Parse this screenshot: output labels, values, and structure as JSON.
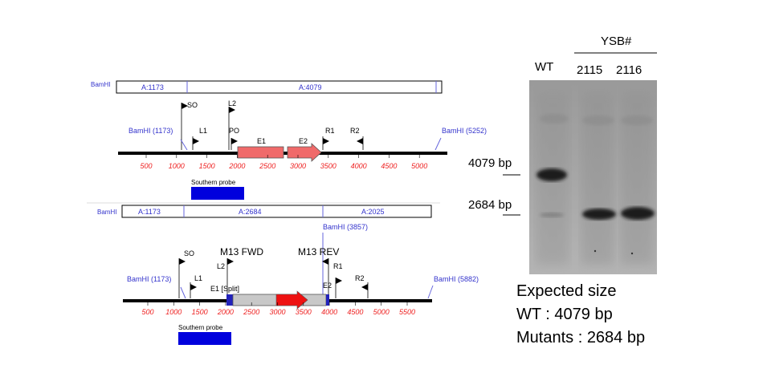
{
  "map_top": {
    "bamhi_tag": "BamHI",
    "frag1": "A:1173",
    "frag2": "A:4079",
    "bamhi_left": "BamHI (1173)",
    "bamhi_right": "BamHI (5252)",
    "primers": {
      "so": "SO",
      "l2": "L2",
      "l1": "L1",
      "po": "PO",
      "r1": "R1",
      "r2": "R2"
    },
    "genes": {
      "e1": "E1",
      "e2": "E2"
    },
    "ticks": [
      "500",
      "1000",
      "1500",
      "2000",
      "2500",
      "3000",
      "3500",
      "4000",
      "4500",
      "5000"
    ],
    "probe": "Southern probe"
  },
  "map_bottom": {
    "bamhi_tag": "BamHI",
    "frag1": "A:1173",
    "frag2": "A:2684",
    "frag3": "A:2025",
    "bamhi_left": "BamHI (1173)",
    "bamhi_mid": "BamHI (3857)",
    "bamhi_right": "BamHI (5882)",
    "m13_fwd": "M13 FWD",
    "m13_rev": "M13 REV",
    "primers": {
      "so": "SO",
      "l2": "L2",
      "l1": "L1",
      "r1": "R1",
      "r2": "R2"
    },
    "genes": {
      "e1": "E1 [Split]",
      "e2": "E2"
    },
    "ticks": [
      "500",
      "1000",
      "1500",
      "2000",
      "2500",
      "3000",
      "3500",
      "4000",
      "4500",
      "5000",
      "5500"
    ],
    "probe": "Southern probe"
  },
  "blot": {
    "group_label": "YSB#",
    "lanes": [
      "WT",
      "2115",
      "2116"
    ],
    "marker_high": "4079 bp",
    "marker_low": "2684 bp"
  },
  "expected": {
    "title": "Expected size",
    "wt": "WT : 4079 bp",
    "mutants": "Mutants : 2684 bp"
  },
  "colors": {
    "gene": "#f06a6a",
    "insert": "#c8c8c8",
    "arrow": "#ee1111",
    "probe": "#0000dd",
    "bamhi": "#3333cc",
    "tick": "#ee2222"
  }
}
